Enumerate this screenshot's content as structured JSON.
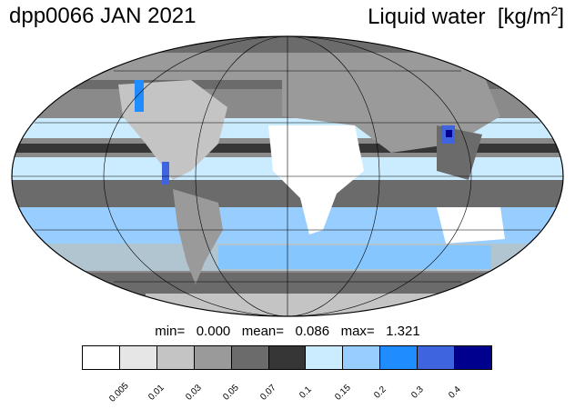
{
  "header": {
    "title": "dpp0066 JAN 2021",
    "variable": "Liquid water",
    "unit_main": "[kg/m",
    "unit_sup": "2",
    "unit_close": "]"
  },
  "stats": {
    "text": "min=   0.000   mean=   0.086   max=   1.321"
  },
  "colorbar": {
    "colors": [
      "#ffffff",
      "#e6e6e6",
      "#c4c4c4",
      "#9a9a9a",
      "#6b6b6b",
      "#363636",
      "#cbecff",
      "#98cdff",
      "#1f8dff",
      "#3f64e0",
      "#00008f"
    ],
    "labels": [
      "0.005",
      "0.01",
      "0.03",
      "0.05",
      "0.07",
      "0.1",
      "0.15",
      "0.2",
      "0.3",
      "0.4"
    ]
  }
}
